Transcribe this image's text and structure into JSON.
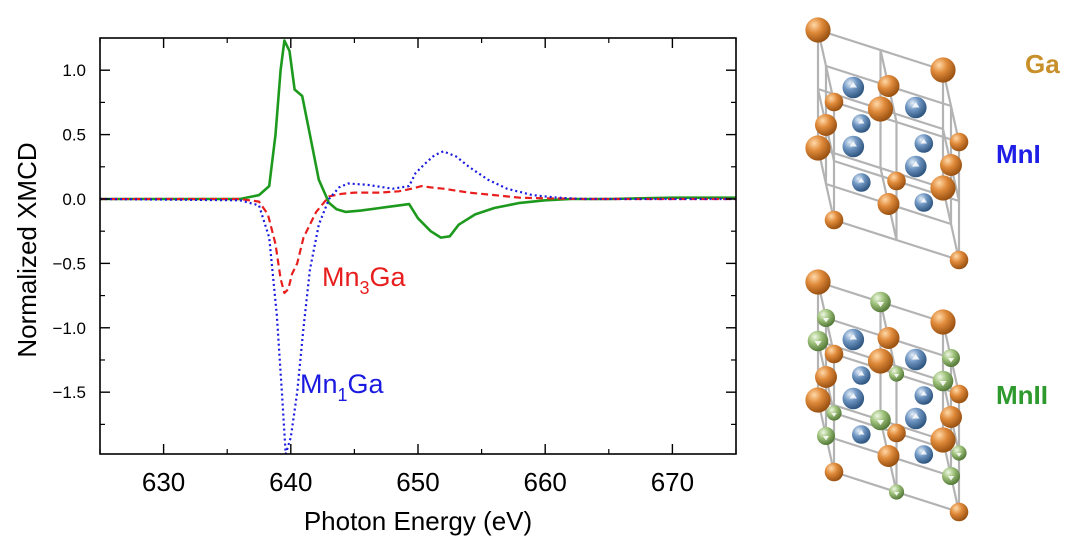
{
  "chart_data": {
    "type": "line",
    "xlabel": "Photon Energy (eV)",
    "ylabel": "Normalized XMCD",
    "xlim": [
      625,
      675
    ],
    "ylim": [
      -1.98,
      1.25
    ],
    "xticks": [
      630,
      640,
      650,
      660,
      670
    ],
    "yticks": [
      1.0,
      0.5,
      0.0,
      -0.5,
      -1.0,
      -1.5
    ],
    "xtick_labels": [
      "630",
      "640",
      "650",
      "660",
      "670"
    ],
    "ytick_labels": [
      "1.0",
      "0.5",
      "0.0",
      "−0.5",
      "−1.0",
      "−1.5"
    ],
    "series": [
      {
        "name": "Mn3Ga",
        "color": "#e81e1e",
        "style": "dashed",
        "x": [
          625,
          636,
          637.5,
          638.2,
          638.8,
          639.2,
          639.5,
          639.8,
          640.1,
          640.5,
          641,
          642,
          643,
          644,
          645,
          647,
          648.5,
          649.5,
          650.3,
          651,
          652,
          654,
          656,
          658,
          660,
          663,
          666,
          670,
          675
        ],
        "y": [
          0,
          0,
          -0.02,
          -0.12,
          -0.35,
          -0.62,
          -0.73,
          -0.7,
          -0.58,
          -0.5,
          -0.3,
          -0.1,
          0.02,
          0.04,
          0.05,
          0.05,
          0.06,
          0.08,
          0.1,
          0.09,
          0.08,
          0.05,
          0.03,
          0.01,
          0.005,
          0,
          0,
          0,
          0
        ]
      },
      {
        "name": "Mn1Ga",
        "color": "#1a1ae0",
        "style": "dotted",
        "x": [
          625,
          636,
          637.5,
          638.3,
          638.9,
          639.3,
          639.6,
          640,
          640.5,
          641,
          641.5,
          642.2,
          643,
          643.8,
          644.5,
          646,
          648,
          649.3,
          649.8,
          650.5,
          651.3,
          652,
          653,
          654,
          655.5,
          657,
          659,
          661,
          663,
          666,
          670,
          675
        ],
        "y": [
          0,
          -0.01,
          -0.05,
          -0.3,
          -0.9,
          -1.5,
          -1.98,
          -1.85,
          -1.5,
          -1.0,
          -0.55,
          -0.2,
          0.0,
          0.09,
          0.12,
          0.11,
          0.08,
          0.1,
          0.2,
          0.27,
          0.34,
          0.37,
          0.33,
          0.25,
          0.15,
          0.08,
          0.03,
          0.01,
          0,
          0,
          0,
          0
        ]
      },
      {
        "name": "MnII",
        "color": "#1d9a1d",
        "style": "solid",
        "x": [
          625,
          636,
          637.5,
          638.3,
          638.8,
          639.2,
          639.5,
          639.9,
          640.3,
          640.9,
          641.5,
          642.2,
          643,
          643.6,
          644.3,
          645.5,
          647,
          648.5,
          649.3,
          650,
          651,
          651.8,
          652.5,
          653.2,
          654.5,
          656,
          658,
          660,
          662,
          665,
          670,
          675
        ],
        "y": [
          0,
          0,
          0.03,
          0.1,
          0.5,
          1.0,
          1.23,
          1.15,
          0.85,
          0.8,
          0.5,
          0.15,
          -0.03,
          -0.08,
          -0.1,
          -0.09,
          -0.07,
          -0.05,
          -0.04,
          -0.15,
          -0.25,
          -0.3,
          -0.29,
          -0.2,
          -0.12,
          -0.07,
          -0.03,
          -0.01,
          0,
          0,
          0.01,
          0.01
        ]
      }
    ],
    "annotations": {
      "mn3ga": {
        "main": "Mn",
        "sub": "3",
        "tail": "Ga"
      },
      "mn1ga": {
        "main": "Mn",
        "sub": "1",
        "tail": "Ga"
      }
    }
  },
  "structure_labels": {
    "ga": "Ga",
    "mn1": "MnI",
    "mn2": "MnII"
  },
  "colors": {
    "ga_atom": "#e08a3a",
    "mn1_atom": "#6f96c2",
    "mn2_atom": "#9fc27c",
    "ga_label": "#c8902a",
    "mn1_label": "#1e1ee6",
    "mn2_label": "#2e9a2e"
  }
}
